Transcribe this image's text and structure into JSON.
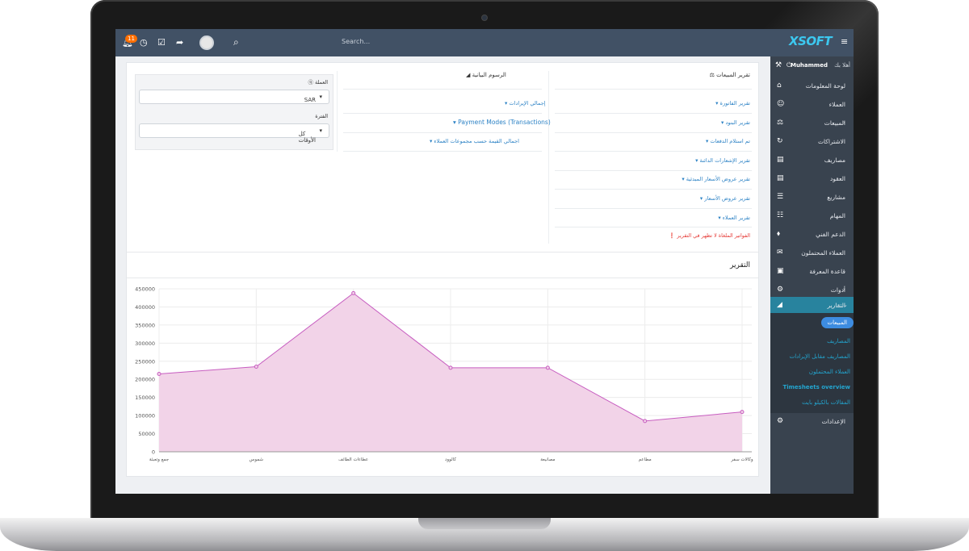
{
  "header": {
    "notification_count": "11",
    "search_placeholder": "Search..."
  },
  "logo_text": "XSOFT",
  "sidebar": {
    "user_name": "Muhammed",
    "greeting": "أهلا بك",
    "items": [
      {
        "label": "لوحة المعلومات",
        "icon": "home-icon"
      },
      {
        "label": "العملاء",
        "icon": "user-icon"
      },
      {
        "label": "المبيعات",
        "icon": "balance-icon"
      },
      {
        "label": "الاشتراكات",
        "icon": "refresh-icon"
      },
      {
        "label": "مصاريف",
        "icon": "file-icon"
      },
      {
        "label": "العقود",
        "icon": "file-icon"
      },
      {
        "label": "مشاريع",
        "icon": "bars-icon"
      },
      {
        "label": "المهام",
        "icon": "tasks-icon"
      },
      {
        "label": "الدعم الفني",
        "icon": "ticket-icon"
      },
      {
        "label": "العملاء المحتملون",
        "icon": "inbox-icon"
      },
      {
        "label": "قاعدة المعرفة",
        "icon": "folder-icon"
      },
      {
        "label": "أدوات",
        "icon": "cogs-icon"
      },
      {
        "label": "التقارير",
        "icon": "area-chart-icon"
      }
    ],
    "submenu": [
      "المبيعات",
      "المصاريف",
      "المصاريف مقابل الإيرادات",
      "العملاء المحتملون",
      "Timesheets overview",
      "المقالات بالكيلو بايت"
    ],
    "settings_label": "الإعدادات"
  },
  "sales_report": {
    "title": "تقرير المبيعات",
    "links": [
      "تقرير الفاتورة",
      "تقرير البنود",
      "تم استلام الدفعات",
      "تقرير الإشعارات الدائنة",
      "تقرير عروض الأسعار المبدئية",
      "تقرير عروض الأسعار",
      "تقرير العملاء"
    ],
    "warning": "الفواتير الملغاة لا تظهر في التقرير"
  },
  "charts_section": {
    "title": "الرسوم البيانية",
    "links": [
      "إجمالي الإيرادات",
      "Payment Modes (Transactions)",
      "اجمالي القيمة حسب مجموعات العملاء"
    ]
  },
  "filters": {
    "currency_label": "العملة",
    "currency_value": "SAR",
    "period_label": "الفترة",
    "period_value": "كل الأوقات"
  },
  "report_heading": "التقرير",
  "chart_data": {
    "type": "area",
    "categories": [
      "جمع وتعبئة",
      "شموس",
      "عطاءات الطائف",
      "كالوود",
      "مصانيعة",
      "مطاعم",
      "وكالات سفر"
    ],
    "values": [
      215000,
      235000,
      438000,
      232000,
      232000,
      85000,
      110000
    ],
    "ylim": [
      0,
      450000
    ],
    "yticks": [
      0,
      50000,
      100000,
      150000,
      200000,
      250000,
      300000,
      350000,
      400000,
      450000
    ],
    "grid": true,
    "fill_color": "#f2d3e8",
    "line_color": "#c75dc0"
  }
}
